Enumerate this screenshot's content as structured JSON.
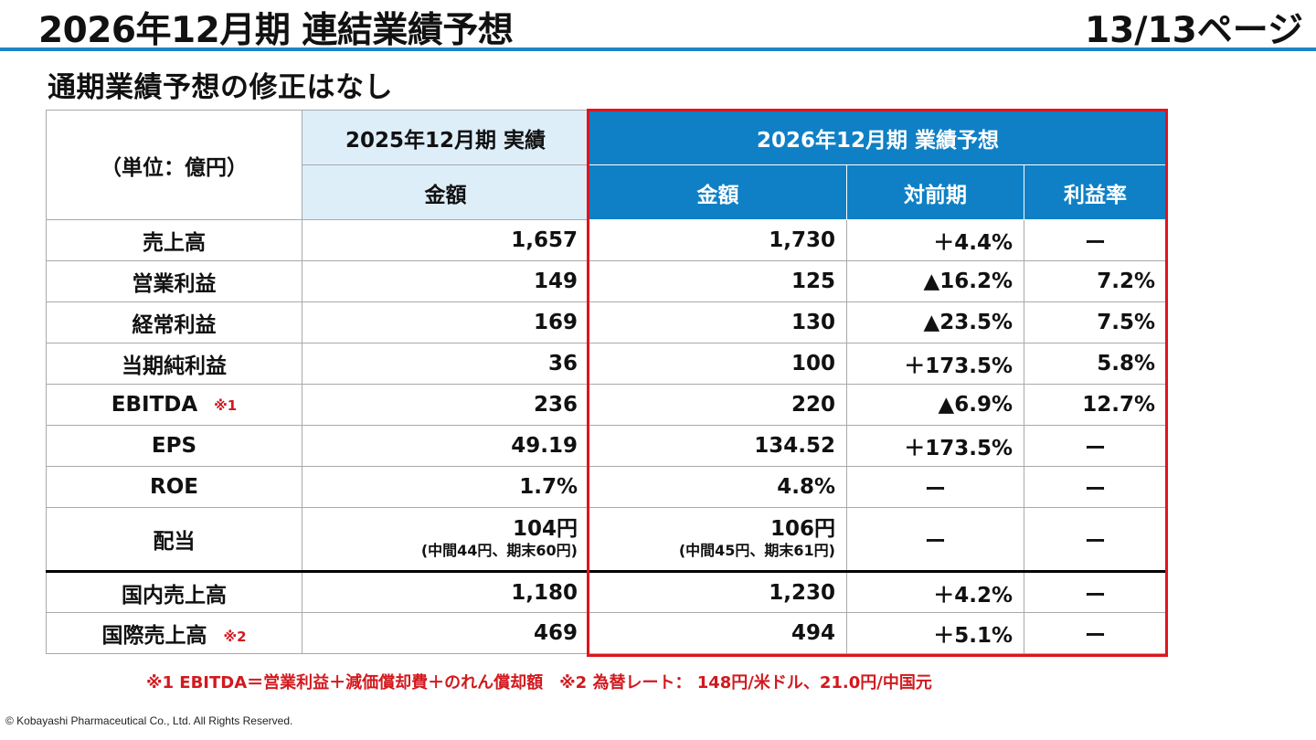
{
  "header": {
    "title": "2026年12月期 連結業績予想",
    "page": "13/13ページ"
  },
  "subtitle": "通期業績予想の修正はなし",
  "table": {
    "unit_label": "（単位：億円）",
    "actual_header": "2025年12月期 実績",
    "forecast_header": "2026年12月期 業績予想",
    "col_amount": "金額",
    "col_yoy": "対前期",
    "col_margin": "利益率",
    "rows": [
      {
        "label": "売上高",
        "note": "",
        "actual": "1,657",
        "forecast": "1,730",
        "yoy": "＋4.4%",
        "margin": "ー"
      },
      {
        "label": "営業利益",
        "note": "",
        "actual": "149",
        "forecast": "125",
        "yoy": "▲16.2%",
        "margin": "7.2%"
      },
      {
        "label": "経常利益",
        "note": "",
        "actual": "169",
        "forecast": "130",
        "yoy": "▲23.5%",
        "margin": "7.5%"
      },
      {
        "label": "当期純利益",
        "note": "",
        "actual": "36",
        "forecast": "100",
        "yoy": "＋173.5%",
        "margin": "5.8%"
      },
      {
        "label": "EBITDA",
        "note": "※1",
        "actual": "236",
        "forecast": "220",
        "yoy": "▲6.9%",
        "margin": "12.7%"
      },
      {
        "label": "EPS",
        "note": "",
        "actual": "49.19",
        "forecast": "134.52",
        "yoy": "＋173.5%",
        "margin": "ー"
      },
      {
        "label": "ROE",
        "note": "",
        "actual": "1.7%",
        "forecast": "4.8%",
        "yoy": "ー",
        "margin": "ー"
      },
      {
        "label": "配当",
        "note": "",
        "actual": "104円",
        "actual_sub": "(中間44円、期末60円)",
        "forecast": "106円",
        "forecast_sub": "(中間45円、期末61円)",
        "yoy": "ー",
        "margin": "ー"
      },
      {
        "label": "国内売上高",
        "note": "",
        "actual": "1,180",
        "forecast": "1,230",
        "yoy": "＋4.2%",
        "margin": "ー"
      },
      {
        "label": "国際売上高",
        "note": "※2",
        "actual": "469",
        "forecast": "494",
        "yoy": "＋5.1%",
        "margin": "ー"
      }
    ]
  },
  "footnote": "※1 EBITDA＝営業利益＋減価償却費＋のれん償却額　※2 為替レート： 148円/米ドル、21.0円/中国元",
  "copyright": "© Kobayashi Pharmaceutical Co., Ltd. All Rights Reserved.",
  "colors": {
    "accent_blue": "#0f80c5",
    "header_rule": "#1f84c4",
    "light_blue": "#ddeef9",
    "forecast_border": "#e0141e",
    "note_red": "#d2191e"
  }
}
